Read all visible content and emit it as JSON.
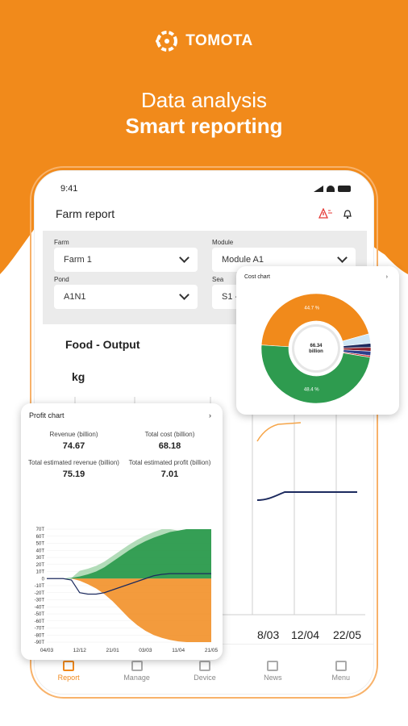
{
  "brand": {
    "name": "TOMOTA"
  },
  "headline": {
    "line1": "Data analysis",
    "line2": "Smart reporting"
  },
  "colors": {
    "brand_orange": "#f18a1b",
    "green": "#2e9b4f",
    "navy": "#1c2a5e",
    "light_green": "#9fd3a8"
  },
  "status_bar": {
    "time": "9:41"
  },
  "app_bar": {
    "title": "Farm report",
    "icons": [
      "alert-icon",
      "bell-icon"
    ]
  },
  "filters": {
    "farm": {
      "label": "Farm",
      "value": "Farm 1"
    },
    "module": {
      "label": "Module",
      "value": "Module A1"
    },
    "pond": {
      "label": "Pond",
      "value": "A1N1"
    },
    "season": {
      "label": "Sea",
      "value": "S1 -"
    }
  },
  "food_output": {
    "title": "Food - Output",
    "unit": "kg",
    "x_ticks_visible": [
      "8/03",
      "12/04",
      "22/05"
    ]
  },
  "tabbar": {
    "items": [
      {
        "label": "Report",
        "icon": "report-icon",
        "active": true
      },
      {
        "label": "Manage",
        "icon": "manage-icon",
        "active": false
      },
      {
        "label": "Device",
        "icon": "device-icon",
        "active": false
      },
      {
        "label": "News",
        "icon": "news-icon",
        "active": false
      },
      {
        "label": "Menu",
        "icon": "menu-icon",
        "active": false
      }
    ]
  },
  "profit_card": {
    "title": "Profit chart",
    "stats": [
      {
        "label": "Revenue (billion)",
        "value": "74.67"
      },
      {
        "label": "Total cost (billion)",
        "value": "68.18"
      },
      {
        "label": "Total estimated revenue (billion)",
        "value": "75.19"
      },
      {
        "label": "Total estimated profit (billion)",
        "value": "7.01"
      }
    ]
  },
  "cost_card": {
    "title": "Cost chart",
    "center_line1": "66.34",
    "center_line2": "billion",
    "label_top": "44.7 %",
    "label_bottom": "48.4 %"
  },
  "chart_data": [
    {
      "type": "area",
      "y_ticks": [
        "70T",
        "60T",
        "50T",
        "40T",
        "30T",
        "20T",
        "10T",
        "0",
        "-10T",
        "-20T",
        "-30T",
        "-40T",
        "-50T",
        "-60T",
        "-70T",
        "-80T",
        "-90T"
      ],
      "x_ticks": [
        "04/03",
        "12/12",
        "21/01",
        "03/03",
        "11/04",
        "21/05"
      ],
      "ylim": [
        -90,
        70
      ],
      "x": [
        0,
        1,
        2,
        3,
        4,
        5,
        6,
        7,
        8,
        9,
        10,
        11,
        12,
        13,
        14,
        15,
        16,
        17,
        18,
        19,
        20
      ],
      "series": [
        {
          "values": [
            0,
            0,
            0,
            1,
            3,
            6,
            10,
            16,
            24,
            32,
            40,
            47,
            53,
            58,
            62,
            66,
            68,
            70,
            70,
            70,
            70
          ]
        },
        {
          "values": [
            0,
            0,
            0,
            0,
            -3,
            -8,
            -14,
            -22,
            -32,
            -44,
            -56,
            -66,
            -74,
            -80,
            -84,
            -87,
            -89,
            -90,
            -90,
            -90,
            -90
          ]
        },
        {
          "values": [
            0,
            0,
            0,
            -2,
            -20,
            -22,
            -22,
            -20,
            -16,
            -12,
            -8,
            -4,
            0,
            4,
            6,
            7,
            7,
            7,
            7,
            7,
            7
          ]
        }
      ]
    },
    {
      "type": "pie",
      "slices": [
        {
          "label": "44.7 %",
          "value": 44.7
        },
        {
          "label": "",
          "value": 2.8
        },
        {
          "label": "",
          "value": 1.2
        },
        {
          "label": "",
          "value": 1.1
        },
        {
          "label": "",
          "value": 1.3
        },
        {
          "label": "",
          "value": 0.5
        },
        {
          "label": "48.4 %",
          "value": 48.4
        }
      ],
      "colors": [
        "#f18a1b",
        "#cfe7f5",
        "#1c2a5e",
        "#8a1f2a",
        "#2c3f8c",
        "#c62828",
        "#2e9b4f"
      ]
    }
  ]
}
